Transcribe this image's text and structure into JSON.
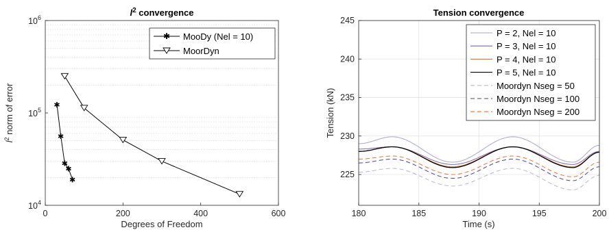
{
  "chart_data": [
    {
      "type": "line",
      "title": "l² convergence",
      "title_main": "l",
      "title_sup": "2",
      "title_rest": " convergence",
      "xlabel": "Degrees of Freedom",
      "ylabel": "l² norm of error",
      "ylabel_main": "l",
      "ylabel_sup": "2",
      "ylabel_rest": " norm of error",
      "xlim": [
        0,
        600
      ],
      "ylim": [
        10000,
        1000000
      ],
      "yscale": "log",
      "grid": "minor-y",
      "legend_position": "top-right",
      "x_ticks": [
        "0",
        "200",
        "400",
        "600"
      ],
      "x_tick_values": [
        0,
        200,
        400,
        600
      ],
      "y_ticks": [
        {
          "value": 10000,
          "base": "10",
          "exp": "4"
        },
        {
          "value": 100000,
          "base": "10",
          "exp": "5"
        },
        {
          "value": 1000000,
          "base": "10",
          "exp": "6"
        }
      ],
      "series": [
        {
          "name": "MooDy (Nel = 10)",
          "color": "#000000",
          "marker": "asterisk",
          "x": [
            30,
            40,
            50,
            60,
            70
          ],
          "y": [
            123000,
            56000,
            28500,
            24800,
            19000
          ]
        },
        {
          "name": "MoorDyn",
          "color": "#000000",
          "marker": "triangle-down",
          "x": [
            50,
            100,
            200,
            300,
            500
          ],
          "y": [
            250000,
            113000,
            51000,
            30000,
            13200
          ]
        }
      ]
    },
    {
      "type": "line",
      "title": "Tension convergence",
      "xlabel": "Time (s)",
      "ylabel": "Tension (kN)",
      "xlim": [
        180,
        200
      ],
      "ylim": [
        221,
        245
      ],
      "grid": "on",
      "legend_position": "top-right",
      "x_ticks": [
        "180",
        "185",
        "190",
        "195",
        "200"
      ],
      "x_tick_values": [
        180,
        185,
        190,
        195,
        200
      ],
      "y_ticks": [
        "225",
        "230",
        "235",
        "240",
        "245"
      ],
      "y_tick_values": [
        225,
        230,
        235,
        240,
        245
      ],
      "series": [
        {
          "name": "P = 2, Nel = 10",
          "color": "#a9a6d3",
          "dash": "solid",
          "x": [
            180,
            182.8,
            187.8,
            192.8,
            197.8,
            200
          ],
          "y": [
            229.0,
            229.9,
            226.6,
            229.9,
            226.6,
            228.8
          ]
        },
        {
          "name": "P = 3, Nel = 10",
          "color": "#7c64b5",
          "dash": "solid",
          "x": [
            180,
            182.8,
            187.8,
            192.8,
            197.8,
            200
          ],
          "y": [
            228.3,
            228.6,
            226.3,
            228.6,
            226.3,
            228.0
          ]
        },
        {
          "name": "P = 4, Nel = 10",
          "color": "#e8732a",
          "dash": "solid",
          "x": [
            180,
            182.8,
            187.8,
            192.8,
            197.8,
            200
          ],
          "y": [
            228.0,
            228.6,
            226.0,
            228.6,
            226.0,
            227.9
          ]
        },
        {
          "name": "P = 5, Nel = 10",
          "color": "#000000",
          "dash": "solid",
          "x": [
            180,
            182.8,
            187.8,
            192.8,
            197.8,
            200
          ],
          "y": [
            228.0,
            228.6,
            225.9,
            228.6,
            225.9,
            227.9
          ]
        },
        {
          "name": "Moordyn Nseg = 50",
          "color": "#b7b5dc",
          "dash": "dashed",
          "x": [
            180,
            182.8,
            187.8,
            192.8,
            197.8,
            200
          ],
          "y": [
            225.3,
            225.8,
            223.5,
            225.8,
            223.0,
            224.9
          ]
        },
        {
          "name": "Moordyn Nseg = 100",
          "color": "#4a4096",
          "dash": "dashed",
          "x": [
            180,
            182.8,
            187.8,
            192.8,
            197.8,
            200
          ],
          "y": [
            226.5,
            227.0,
            224.5,
            227.0,
            224.2,
            226.0
          ]
        },
        {
          "name": "Moordyn Nseg = 200",
          "color": "#e8732a",
          "dash": "dashed",
          "x": [
            180,
            182.8,
            187.8,
            192.8,
            197.8,
            200
          ],
          "y": [
            227.0,
            227.4,
            225.0,
            227.4,
            224.7,
            226.6
          ]
        }
      ]
    }
  ]
}
